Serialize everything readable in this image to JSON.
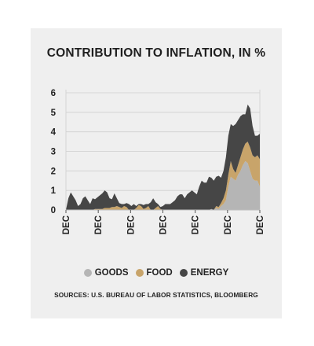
{
  "chart_data": {
    "type": "area",
    "stacked": true,
    "title": "CONTRIBUTION TO INFLATION, IN %",
    "xlabel": "",
    "ylabel": "",
    "ylim": [
      0,
      6
    ],
    "yticks": [
      "0",
      "1",
      "2",
      "3",
      "4",
      "5",
      "6"
    ],
    "xticks": [
      "DEC",
      "DEC",
      "DEC",
      "DEC",
      "DEC",
      "DEC",
      "DEC"
    ],
    "grid": true,
    "legend_position": "bottom",
    "sources": "SOURCES: U.S. BUREAU OF LABOR STATISTICS, BLOOMBERG",
    "series": [
      {
        "name": "GOODS",
        "color": "#b5b5b5",
        "values": [
          0,
          0,
          0,
          0,
          0,
          0,
          0,
          0,
          0,
          0,
          0,
          0,
          0,
          0,
          0,
          0,
          0,
          0,
          0,
          0,
          0,
          0,
          0,
          0,
          0,
          0,
          0,
          0,
          0,
          0,
          0,
          0,
          0,
          0,
          0,
          0,
          0,
          0,
          0,
          0,
          0,
          0,
          0,
          0,
          0,
          0,
          0,
          0,
          0,
          0,
          0,
          0,
          0,
          0,
          0,
          0,
          0,
          0,
          0,
          0,
          0.05,
          0,
          0.1,
          0.05,
          0.2,
          0.3,
          0.5,
          1.2,
          1.7,
          1.6,
          1.5,
          1.8,
          2.0,
          2.3,
          2.5,
          2.4,
          2.0,
          1.6,
          1.5,
          1.5,
          1.2
        ]
      },
      {
        "name": "FOOD",
        "color": "#c8a46a",
        "values": [
          0,
          0,
          0,
          0,
          0,
          0,
          0,
          0,
          0,
          0,
          0,
          0,
          0.05,
          0.05,
          0.05,
          0.05,
          0.1,
          0.1,
          0.1,
          0.15,
          0.15,
          0.2,
          0.15,
          0.1,
          0.2,
          0.15,
          0,
          0,
          0,
          0.1,
          0.25,
          0.2,
          0.05,
          0.1,
          0.2,
          0,
          0,
          0.1,
          0.2,
          0.05,
          0,
          0,
          0,
          0,
          0,
          0,
          0,
          0,
          0,
          0,
          0,
          0,
          0,
          0,
          0,
          0,
          0,
          0,
          0,
          0,
          0,
          0,
          0.1,
          0.1,
          0.15,
          0.3,
          0.5,
          0.6,
          0.8,
          0.5,
          0.4,
          0.5,
          0.7,
          0.8,
          0.9,
          1.1,
          1.2,
          1.2,
          1.2,
          1.3,
          1.4,
          1.4
        ]
      },
      {
        "name": "ENERGY",
        "color": "#464646",
        "values": [
          0,
          0.6,
          0.9,
          0.7,
          0.5,
          0.2,
          0.3,
          0.6,
          0.7,
          0.5,
          0.3,
          0.6,
          0.5,
          0.6,
          0.7,
          0.8,
          0.9,
          0.8,
          0.5,
          0.4,
          0.7,
          0.4,
          0.2,
          0.2,
          0.1,
          0.2,
          0.3,
          0.2,
          0.3,
          0.1,
          0.05,
          0.1,
          0.2,
          0.2,
          0.1,
          0.4,
          0.6,
          0.3,
          0.1,
          0.1,
          0.2,
          0.3,
          0.3,
          0.3,
          0.4,
          0.5,
          0.7,
          0.8,
          0.8,
          0.6,
          0.8,
          0.9,
          1.0,
          0.9,
          0.8,
          1.2,
          1.5,
          1.4,
          1.4,
          1.7,
          1.6,
          1.5,
          1.5,
          1.6,
          1.3,
          1.4,
          1.7,
          2.0,
          1.9,
          2.2,
          2.5,
          2.3,
          2.1,
          1.8,
          1.5,
          1.9,
          2.0,
          1.5,
          1.1,
          1.0,
          1.3
        ]
      }
    ]
  }
}
